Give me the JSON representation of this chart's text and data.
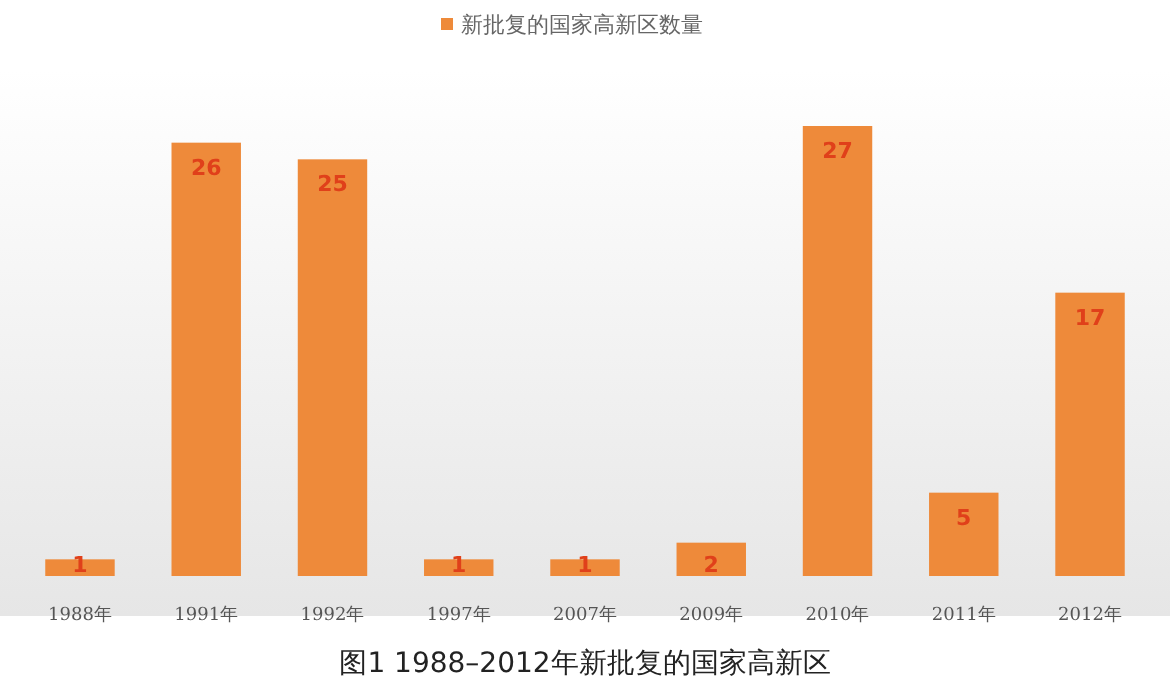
{
  "chart_data": {
    "type": "bar",
    "title": "图1  1988–2012年新批复的国家高新区",
    "categories": [
      "1988年",
      "1991年",
      "1992年",
      "1997年",
      "2007年",
      "2009年",
      "2010年",
      "2011年",
      "2012年"
    ],
    "series": [
      {
        "name": "新批复的国家高新区数量",
        "color": "#ee8a3a",
        "values": [
          1,
          26,
          25,
          1,
          1,
          2,
          27,
          5,
          17
        ]
      }
    ],
    "data_labels": true,
    "legend": "top",
    "grid": false
  }
}
